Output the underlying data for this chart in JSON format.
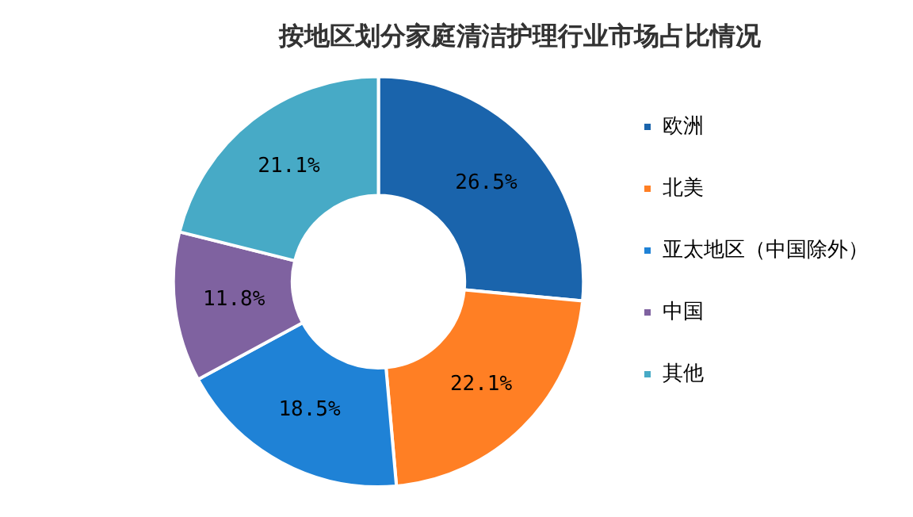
{
  "chart_data": {
    "type": "donut",
    "title": "按地区划分家庭清洁护理行业市场占比情况",
    "categories": [
      "欧洲",
      "北美",
      "亚太地区（中国除外）",
      "中国",
      "其他"
    ],
    "values": [
      26.5,
      22.1,
      18.5,
      11.8,
      21.1
    ],
    "colors": [
      "#1a64ac",
      "#ff7f24",
      "#1f82d6",
      "#7f62a0",
      "#47aac6"
    ],
    "value_labels": [
      "26.5%",
      "22.1%",
      "18.5%",
      "11.8%",
      "21.1%"
    ],
    "legend": "right"
  }
}
